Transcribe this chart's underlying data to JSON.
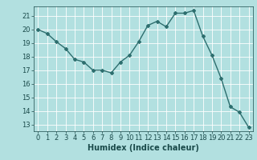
{
  "x": [
    0,
    1,
    2,
    3,
    4,
    5,
    6,
    7,
    8,
    9,
    10,
    11,
    12,
    13,
    14,
    15,
    16,
    17,
    18,
    19,
    20,
    21,
    22,
    23
  ],
  "y": [
    20.0,
    19.7,
    19.1,
    18.6,
    17.8,
    17.6,
    17.0,
    17.0,
    16.8,
    17.6,
    18.1,
    19.1,
    20.3,
    20.6,
    20.2,
    21.2,
    21.2,
    21.4,
    19.5,
    18.1,
    16.4,
    14.3,
    13.9,
    12.8
  ],
  "line_color": "#2d6e6e",
  "marker": "D",
  "marker_size": 2,
  "bg_color": "#b2e0e0",
  "grid_color": "#ffffff",
  "xlabel": "Humidex (Indice chaleur)",
  "xlim": [
    -0.5,
    23.5
  ],
  "ylim": [
    12.5,
    21.7
  ],
  "yticks": [
    13,
    14,
    15,
    16,
    17,
    18,
    19,
    20,
    21
  ],
  "xticks": [
    0,
    1,
    2,
    3,
    4,
    5,
    6,
    7,
    8,
    9,
    10,
    11,
    12,
    13,
    14,
    15,
    16,
    17,
    18,
    19,
    20,
    21,
    22,
    23
  ],
  "font_color": "#1a4a4a",
  "xlabel_fontsize": 7,
  "tick_fontsize": 6,
  "line_width": 1.0
}
